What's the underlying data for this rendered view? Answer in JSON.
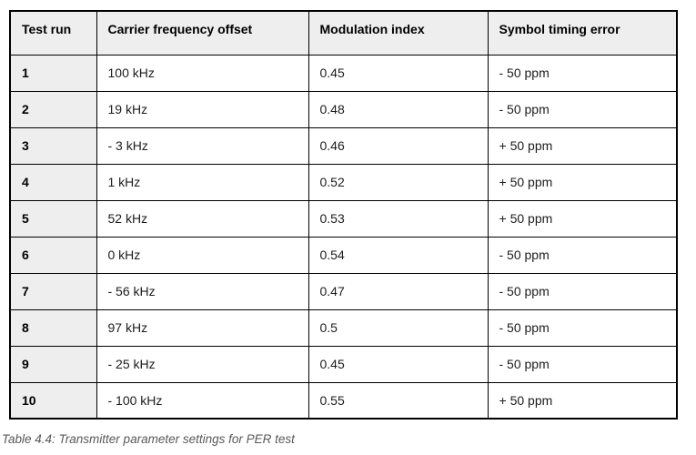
{
  "table": {
    "columns": [
      "Test run",
      "Carrier frequency offset",
      "Modulation index",
      "Symbol timing error"
    ],
    "rows": [
      [
        "1",
        "100 kHz",
        "0.45",
        "- 50 ppm"
      ],
      [
        "2",
        "19 kHz",
        "0.48",
        "- 50 ppm"
      ],
      [
        "3",
        "- 3 kHz",
        "0.46",
        "+ 50 ppm"
      ],
      [
        "4",
        "1 kHz",
        "0.52",
        "+ 50 ppm"
      ],
      [
        "5",
        "52 kHz",
        "0.53",
        "+ 50 ppm"
      ],
      [
        "6",
        "0 kHz",
        "0.54",
        "- 50 ppm"
      ],
      [
        "7",
        "- 56 kHz",
        "0.47",
        "- 50 ppm"
      ],
      [
        "8",
        "97 kHz",
        "0.5",
        "- 50 ppm"
      ],
      [
        "9",
        "- 25 kHz",
        "0.45",
        "- 50 ppm"
      ],
      [
        "10",
        "- 100 kHz",
        "0.55",
        "+ 50 ppm"
      ]
    ]
  },
  "caption": "Table 4.4: Transmitter parameter settings for PER test",
  "colors": {
    "header_bg": "#eeeeee",
    "border_color": "#000000",
    "text_color": "#1c1c1c",
    "caption_color": "#595959",
    "page_bg": "#ffffff"
  }
}
